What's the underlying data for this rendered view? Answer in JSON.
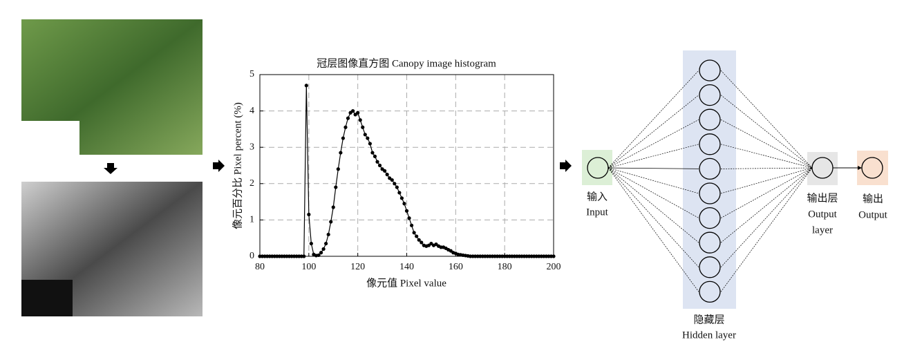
{
  "chart_data": {
    "type": "line",
    "title": "冠层图像直方图 Canopy image histogram",
    "x_label": "像元值 Pixel value",
    "y_label": "像元百分比 Pixel percent (%)",
    "color": "#000000",
    "grid": true,
    "xlim": [
      80,
      200
    ],
    "xticks": [
      80,
      100,
      120,
      140,
      160,
      180,
      200
    ],
    "ylim": [
      0,
      5
    ],
    "yticks": [
      0,
      1,
      2,
      3,
      4,
      5
    ],
    "x": [
      80,
      81,
      82,
      83,
      84,
      85,
      86,
      87,
      88,
      89,
      90,
      91,
      92,
      93,
      94,
      95,
      96,
      97,
      98,
      99,
      100,
      101,
      102,
      103,
      104,
      105,
      106,
      107,
      108,
      109,
      110,
      111,
      112,
      113,
      114,
      115,
      116,
      117,
      118,
      119,
      120,
      121,
      122,
      123,
      124,
      125,
      126,
      127,
      128,
      129,
      130,
      131,
      132,
      133,
      134,
      135,
      136,
      137,
      138,
      139,
      140,
      141,
      142,
      143,
      144,
      145,
      146,
      147,
      148,
      149,
      150,
      151,
      152,
      153,
      154,
      155,
      156,
      157,
      158,
      159,
      160,
      161,
      162,
      163,
      164,
      165,
      166,
      167,
      168,
      169,
      170,
      171,
      172,
      173,
      174,
      175,
      176,
      177,
      178,
      179,
      180,
      181,
      182,
      183,
      184,
      185,
      186,
      187,
      188,
      189,
      190,
      191,
      192,
      193,
      194,
      195,
      196,
      197,
      198,
      199,
      200
    ],
    "values": [
      0,
      0,
      0,
      0,
      0,
      0,
      0,
      0,
      0,
      0,
      0,
      0,
      0,
      0,
      0,
      0,
      0,
      0,
      0,
      4.7,
      1.15,
      0.35,
      0.05,
      0.02,
      0.03,
      0.1,
      0.2,
      0.35,
      0.6,
      0.95,
      1.35,
      1.9,
      2.4,
      2.85,
      3.25,
      3.55,
      3.8,
      3.95,
      4.0,
      3.9,
      3.95,
      3.75,
      3.55,
      3.35,
      3.25,
      3.1,
      2.85,
      2.75,
      2.6,
      2.5,
      2.4,
      2.35,
      2.25,
      2.15,
      2.1,
      2.0,
      1.9,
      1.75,
      1.6,
      1.45,
      1.25,
      1.05,
      0.85,
      0.65,
      0.55,
      0.45,
      0.38,
      0.3,
      0.28,
      0.3,
      0.35,
      0.3,
      0.33,
      0.28,
      0.25,
      0.25,
      0.22,
      0.18,
      0.15,
      0.1,
      0.08,
      0.05,
      0.04,
      0.03,
      0.02,
      0.01,
      0,
      0,
      0,
      0,
      0,
      0,
      0,
      0,
      0,
      0,
      0,
      0,
      0,
      0,
      0,
      0,
      0,
      0,
      0,
      0,
      0,
      0,
      0,
      0,
      0,
      0,
      0,
      0,
      0,
      0,
      0,
      0,
      0,
      0,
      0
    ]
  },
  "network": {
    "input": [
      "输入",
      "Input"
    ],
    "hidden": [
      "隐藏层",
      "Hidden layer"
    ],
    "output_layer": [
      "输出层",
      "Output",
      "layer"
    ],
    "output": [
      "输出",
      "Output"
    ]
  }
}
